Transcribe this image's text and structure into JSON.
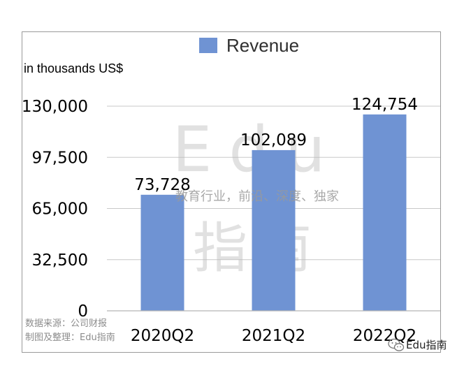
{
  "chart_data": {
    "type": "bar",
    "categories": [
      "2020Q2",
      "2021Q2",
      "2022Q2"
    ],
    "series": [
      {
        "name": "Revenue",
        "values": [
          73728,
          102089,
          124754
        ]
      }
    ],
    "data_labels": [
      "73,728",
      "102,089",
      "124,754"
    ],
    "unit_label": "in thousands US$",
    "yticks": [
      0,
      32500,
      65000,
      97500,
      130000
    ],
    "ytick_labels": [
      "0",
      "32,500",
      "65,000",
      "97,500",
      "130,000"
    ],
    "ylim": [
      0,
      130000
    ],
    "grid": true,
    "legend_position": "top-center",
    "bar_color": "#6f93d3"
  },
  "source_note": {
    "line1": "数据来源：公司财报",
    "line2": "制图及整理：Edu指南"
  },
  "watermark": {
    "latin": "Edu",
    "cjk": "指南",
    "tagline": "教育行业，前沿、深度、独家"
  },
  "brand": {
    "label": "Edu指南",
    "icon": "wechat-icon"
  }
}
